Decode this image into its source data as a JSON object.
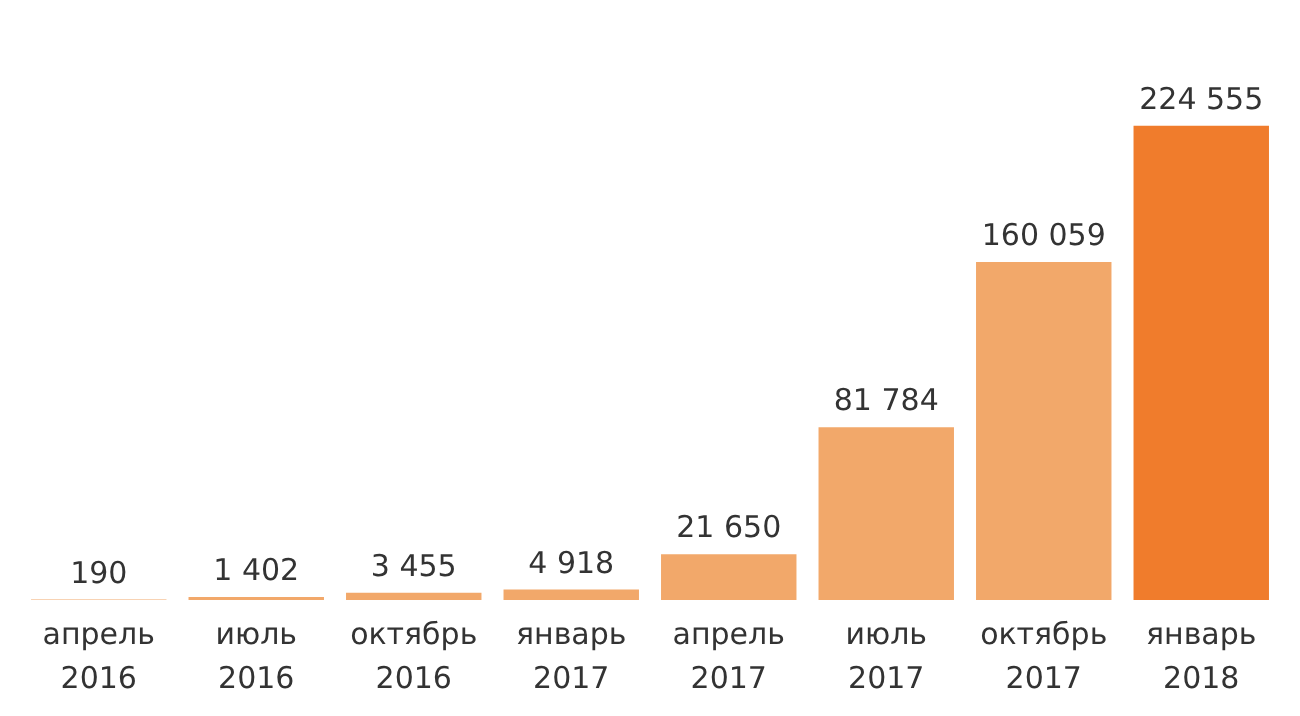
{
  "chart_data": {
    "type": "bar",
    "categories": [
      "апрель\n2016",
      "июль\n2016",
      "октябрь\n2016",
      "январь\n2017",
      "апрель\n2017",
      "июль\n2017",
      "октябрь\n2017",
      "январь\n2018"
    ],
    "values": [
      190,
      1402,
      3455,
      4918,
      21650,
      81784,
      160059,
      224555
    ],
    "value_labels": [
      "190",
      "1 402",
      "3 455",
      "4 918",
      "21 650",
      "81 784",
      "160 059",
      "224 555"
    ],
    "colors": [
      "#f2a86a",
      "#f2a86a",
      "#f2a86a",
      "#f2a86a",
      "#f2a86a",
      "#f2a86a",
      "#f2a86a",
      "#f07c2c"
    ]
  }
}
